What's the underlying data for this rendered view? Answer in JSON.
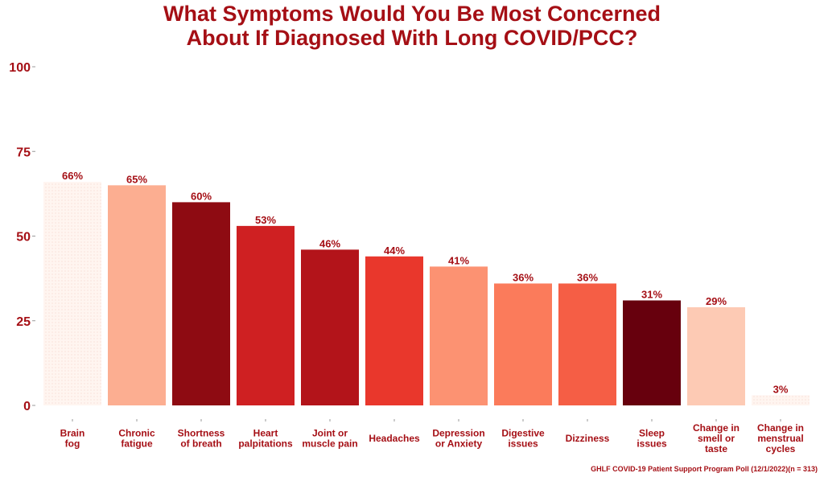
{
  "chart_data": {
    "type": "bar",
    "title_lines": [
      "What Symptoms Would You Be Most Concerned",
      "About If Diagnosed With Long COVID/PCC?"
    ],
    "xlabel": "",
    "ylabel": "",
    "ylim": [
      0,
      100
    ],
    "yticks": [
      0,
      25,
      50,
      75,
      100
    ],
    "grid": false,
    "categories": [
      [
        "Brain",
        "fog"
      ],
      [
        "Chronic",
        "fatigue"
      ],
      [
        "Shortness",
        "of breath"
      ],
      [
        "Heart",
        "palpitations"
      ],
      [
        "Joint or",
        "muscle pain"
      ],
      [
        "Headaches"
      ],
      [
        "Depression",
        "or Anxiety"
      ],
      [
        "Digestive",
        "issues"
      ],
      [
        "Dizziness"
      ],
      [
        "Sleep",
        "issues"
      ],
      [
        "Change in",
        "smell or",
        "taste"
      ],
      [
        "Change in",
        "menstrual",
        "cycles"
      ]
    ],
    "values": [
      66,
      65,
      60,
      53,
      46,
      44,
      41,
      36,
      36,
      31,
      29,
      3
    ],
    "value_labels": [
      "66%",
      "65%",
      "60%",
      "53%",
      "46%",
      "44%",
      "41%",
      "36%",
      "36%",
      "31%",
      "29%",
      "3%"
    ],
    "colors": [
      "#fff5f0",
      "#fcae91",
      "#8e0b12",
      "#cf2022",
      "#b3141a",
      "#e9372c",
      "#fc9272",
      "#fb7b5b",
      "#f55e45",
      "#67000d",
      "#fdcab4",
      "#fee5d9"
    ],
    "text_color": "#a50f15",
    "caption": "GHLF COVID-19 Patient Support Program Poll (12/1/2022)(n = 313)"
  }
}
